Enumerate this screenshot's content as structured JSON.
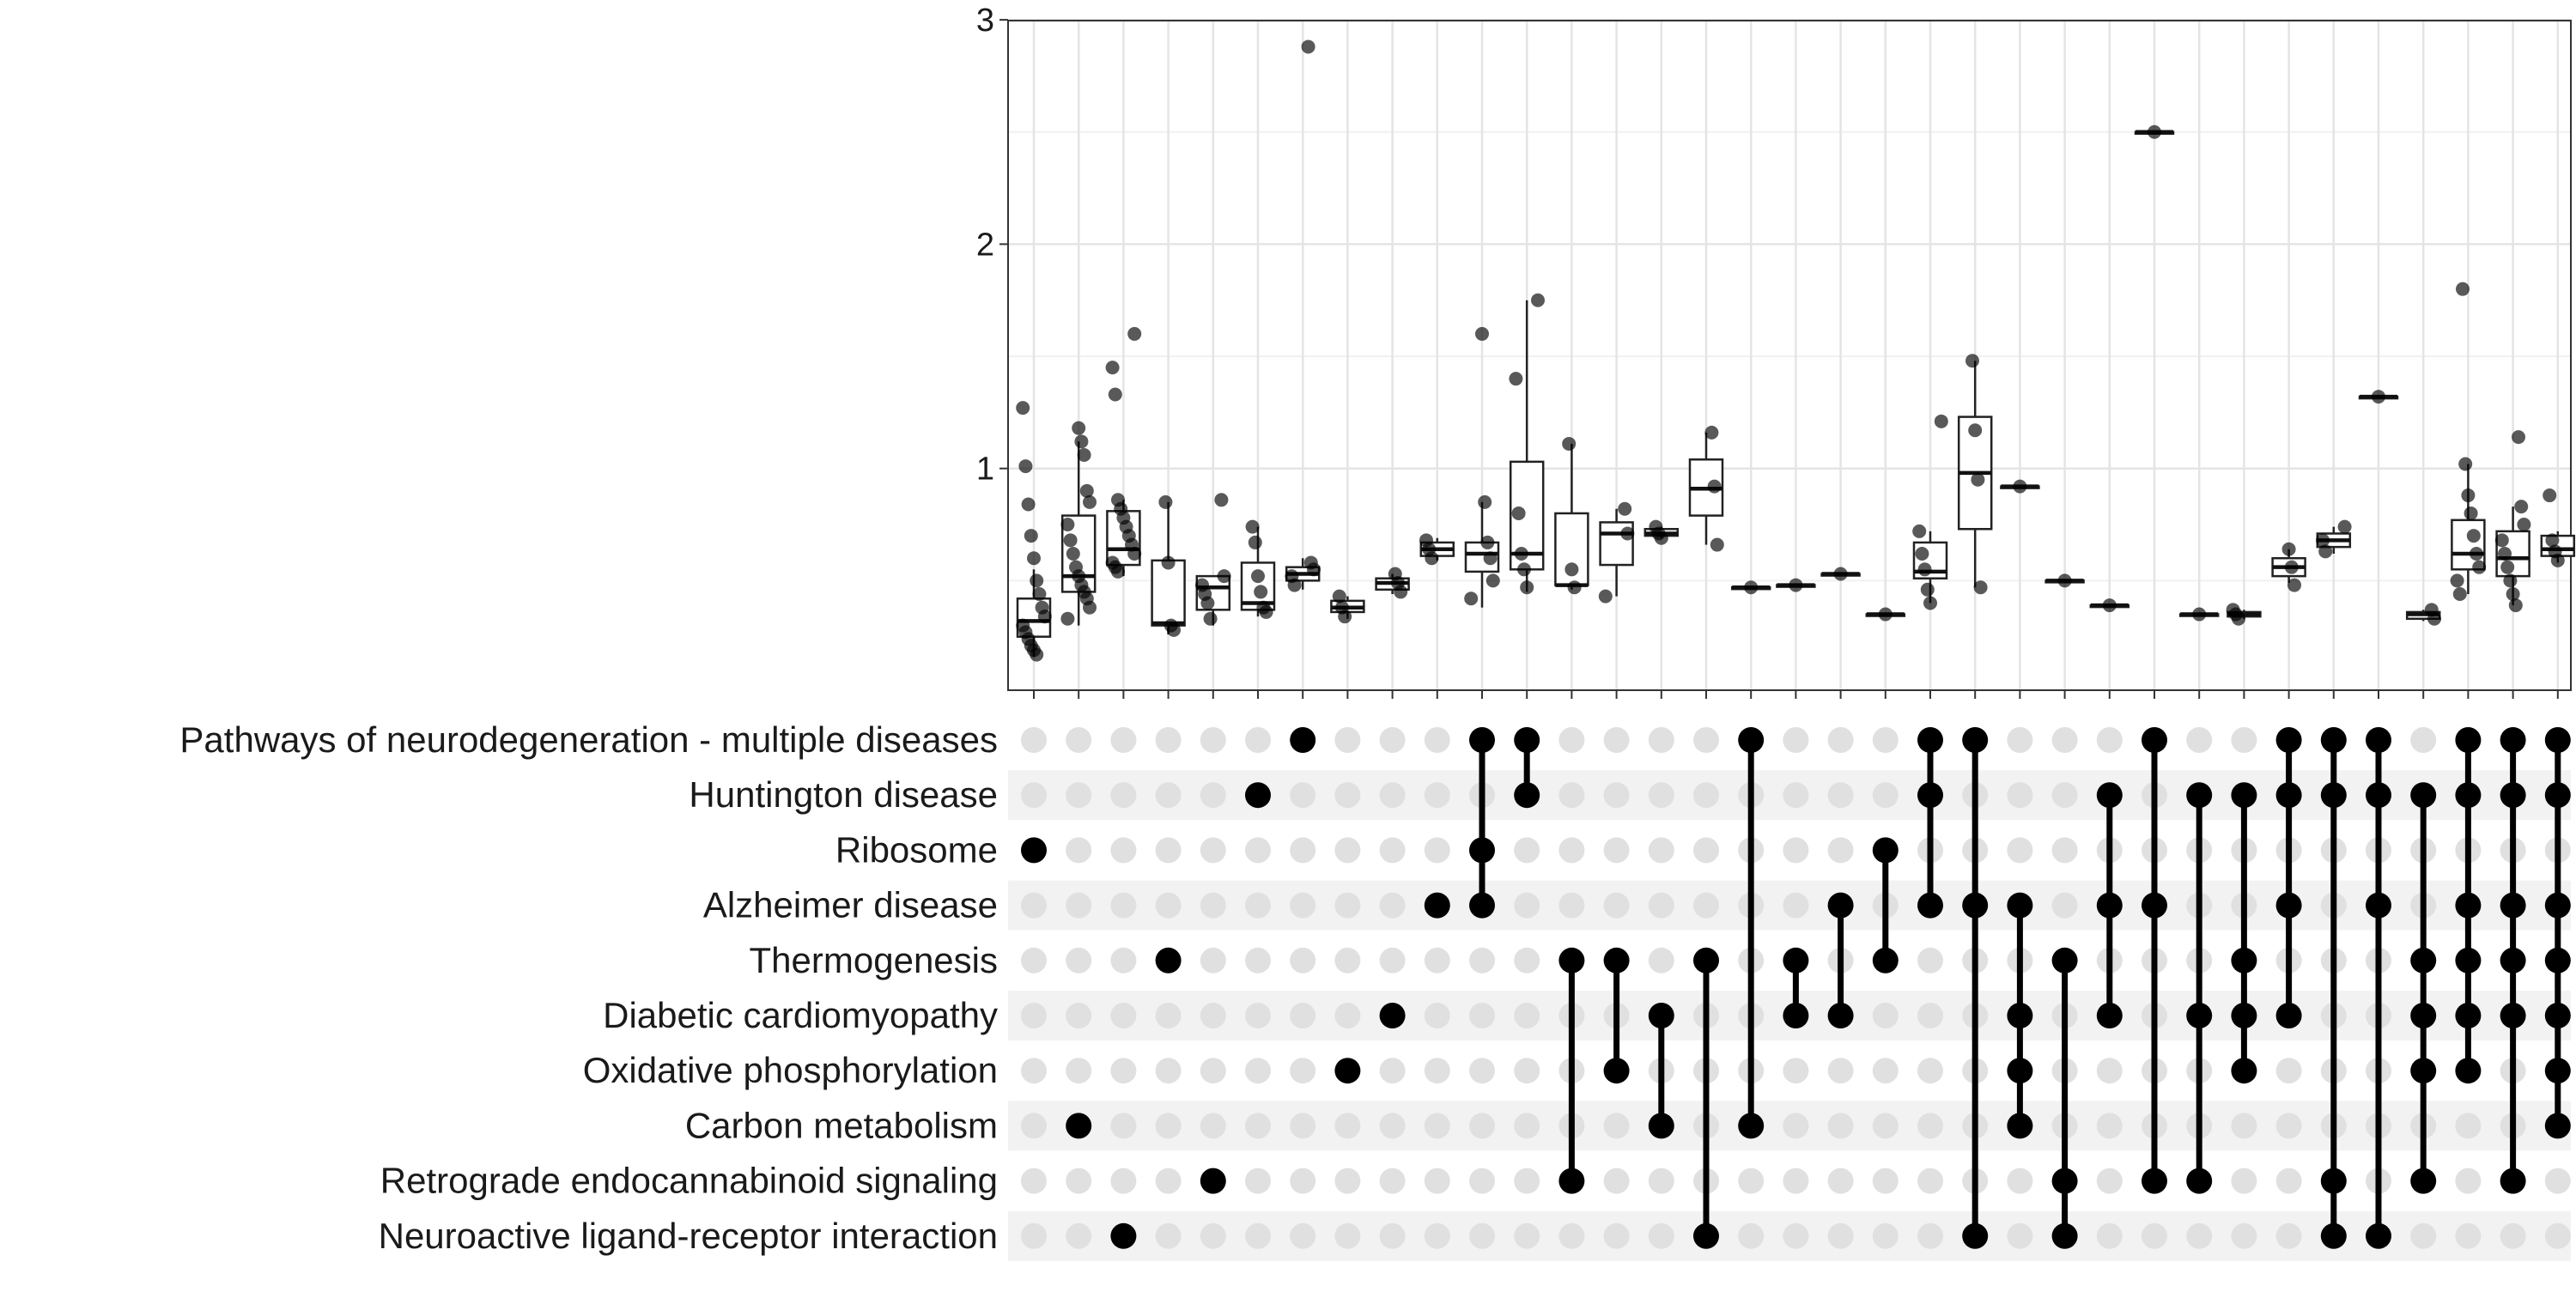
{
  "chart_data": {
    "type": "upset-boxplot",
    "title": "",
    "ylabel": "",
    "ylim": [
      0,
      3
    ],
    "yticks": [
      1,
      2,
      3
    ],
    "grid": true,
    "sets": [
      "Pathways of neurodegeneration - multiple diseases",
      "Huntington disease",
      "Ribosome",
      "Alzheimer disease",
      "Thermogenesis",
      "Diabetic cardiomyopathy",
      "Oxidative phosphorylation",
      "Carbon metabolism",
      "Retrograde endocannabinoid signaling",
      "Neuroactive ligand-receptor interaction"
    ],
    "intersections": [
      {
        "sets": [
          2
        ],
        "box": [
          0.16,
          0.25,
          0.32,
          0.42,
          0.55
        ],
        "points": [
          1.27,
          1.01,
          0.84,
          0.7,
          0.6,
          0.5,
          0.44,
          0.38,
          0.34,
          0.3,
          0.27,
          0.24,
          0.21,
          0.19,
          0.17
        ]
      },
      {
        "sets": [
          7
        ],
        "box": [
          0.3,
          0.45,
          0.52,
          0.79,
          1.12
        ],
        "points": [
          1.18,
          1.12,
          1.06,
          0.9,
          0.85,
          0.75,
          0.68,
          0.62,
          0.56,
          0.52,
          0.48,
          0.45,
          0.42,
          0.38,
          0.33
        ]
      },
      {
        "sets": [
          9
        ],
        "box": [
          0.52,
          0.57,
          0.64,
          0.81,
          0.86
        ],
        "points": [
          1.6,
          1.45,
          1.33,
          0.86,
          0.82,
          0.78,
          0.74,
          0.7,
          0.66,
          0.62,
          0.58,
          0.56,
          0.54
        ]
      },
      {
        "sets": [
          4
        ],
        "box": [
          0.26,
          0.3,
          0.31,
          0.59,
          0.85
        ],
        "points": [
          0.85,
          0.58,
          0.3,
          0.28
        ]
      },
      {
        "sets": [
          8
        ],
        "box": [
          0.3,
          0.37,
          0.47,
          0.52,
          0.52
        ],
        "points": [
          0.86,
          0.52,
          0.48,
          0.44,
          0.4,
          0.33
        ]
      },
      {
        "sets": [
          1
        ],
        "box": [
          0.34,
          0.37,
          0.4,
          0.58,
          0.74
        ],
        "points": [
          0.74,
          0.67,
          0.52,
          0.45,
          0.38,
          0.36
        ]
      },
      {
        "sets": [
          0
        ],
        "box": [
          0.46,
          0.5,
          0.53,
          0.56,
          0.6
        ],
        "points": [
          2.88,
          0.58,
          0.55,
          0.52,
          0.48
        ]
      },
      {
        "sets": [
          6
        ],
        "box": [
          0.33,
          0.36,
          0.38,
          0.41,
          0.43
        ],
        "points": [
          0.43,
          0.38,
          0.34
        ]
      },
      {
        "sets": [
          5
        ],
        "box": [
          0.44,
          0.46,
          0.49,
          0.51,
          0.53
        ],
        "points": [
          0.53,
          0.49,
          0.45
        ]
      },
      {
        "sets": [
          3
        ],
        "box": [
          0.59,
          0.61,
          0.64,
          0.67,
          0.69
        ],
        "points": [
          0.68,
          0.64,
          0.6
        ]
      },
      {
        "sets": [
          0,
          2,
          3
        ],
        "box": [
          0.38,
          0.54,
          0.62,
          0.67,
          0.85
        ],
        "points": [
          1.6,
          0.85,
          0.67,
          0.6,
          0.5,
          0.42
        ]
      },
      {
        "sets": [
          0,
          1
        ],
        "box": [
          0.45,
          0.55,
          0.62,
          1.03,
          1.75
        ],
        "points": [
          1.75,
          1.4,
          0.8,
          0.62,
          0.55,
          0.47
        ]
      },
      {
        "sets": [
          4,
          8
        ],
        "box": [
          0.46,
          0.48,
          0.48,
          0.8,
          1.11
        ],
        "points": [
          1.11,
          0.55,
          0.47
        ]
      },
      {
        "sets": [
          4,
          6
        ],
        "box": [
          0.43,
          0.57,
          0.71,
          0.76,
          0.82
        ],
        "points": [
          0.82,
          0.71,
          0.43
        ]
      },
      {
        "sets": [
          5,
          7
        ],
        "box": [
          0.69,
          0.7,
          0.71,
          0.73,
          0.74
        ],
        "points": [
          0.74,
          0.71,
          0.69
        ]
      },
      {
        "sets": [
          4,
          9
        ],
        "box": [
          0.66,
          0.79,
          0.91,
          1.04,
          1.16
        ],
        "points": [
          1.16,
          0.92,
          0.66
        ]
      },
      {
        "sets": [
          0,
          7
        ],
        "box": [
          0.47,
          0.47,
          0.47,
          0.47,
          0.47
        ],
        "points": [
          0.47
        ]
      },
      {
        "sets": [
          4,
          5
        ],
        "box": [
          0.48,
          0.48,
          0.48,
          0.48,
          0.48
        ],
        "points": [
          0.48
        ]
      },
      {
        "sets": [
          3,
          5
        ],
        "box": [
          0.53,
          0.53,
          0.53,
          0.53,
          0.53
        ],
        "points": [
          0.53
        ]
      },
      {
        "sets": [
          2,
          4
        ],
        "box": [
          0.35,
          0.35,
          0.35,
          0.35,
          0.35
        ],
        "points": [
          0.35
        ]
      },
      {
        "sets": [
          0,
          1,
          3
        ],
        "box": [
          0.4,
          0.51,
          0.54,
          0.67,
          0.72
        ],
        "points": [
          1.21,
          0.72,
          0.62,
          0.55,
          0.46,
          0.4
        ]
      },
      {
        "sets": [
          0,
          3,
          9
        ],
        "box": [
          0.47,
          0.73,
          0.98,
          1.23,
          1.48
        ],
        "points": [
          1.48,
          1.17,
          0.95,
          0.47
        ]
      },
      {
        "sets": [
          3,
          5,
          6,
          7
        ],
        "box": [
          0.92,
          0.92,
          0.92,
          0.92,
          0.92
        ],
        "points": [
          0.92
        ]
      },
      {
        "sets": [
          4,
          8,
          9
        ],
        "box": [
          0.5,
          0.5,
          0.5,
          0.5,
          0.5
        ],
        "points": [
          0.5
        ]
      },
      {
        "sets": [
          1,
          3,
          5
        ],
        "box": [
          0.39,
          0.39,
          0.39,
          0.39,
          0.39
        ],
        "points": [
          0.39
        ]
      },
      {
        "sets": [
          0,
          3,
          8
        ],
        "box": [
          2.5,
          2.5,
          2.5,
          2.5,
          2.5
        ],
        "points": [
          2.5
        ]
      },
      {
        "sets": [
          1,
          5,
          8
        ],
        "box": [
          0.35,
          0.35,
          0.35,
          0.35,
          0.35
        ],
        "points": [
          0.35
        ]
      },
      {
        "sets": [
          1,
          4,
          5,
          6
        ],
        "box": [
          0.33,
          0.34,
          0.35,
          0.36,
          0.37
        ],
        "points": [
          0.37,
          0.35,
          0.33
        ]
      },
      {
        "sets": [
          0,
          1,
          3,
          5
        ],
        "box": [
          0.49,
          0.52,
          0.56,
          0.6,
          0.64
        ],
        "points": [
          0.64,
          0.56,
          0.48
        ]
      },
      {
        "sets": [
          0,
          1,
          8,
          9
        ],
        "box": [
          0.62,
          0.65,
          0.68,
          0.71,
          0.74
        ],
        "points": [
          0.74,
          0.68,
          0.63
        ]
      },
      {
        "sets": [
          0,
          1,
          3,
          9
        ],
        "box": [
          1.32,
          1.32,
          1.32,
          1.32,
          1.32
        ],
        "points": [
          1.32
        ]
      },
      {
        "sets": [
          1,
          4,
          5,
          6,
          8
        ],
        "box": [
          0.32,
          0.33,
          0.35,
          0.36,
          0.37
        ],
        "points": [
          0.37,
          0.33
        ]
      },
      {
        "sets": [
          0,
          1,
          3,
          4,
          5,
          6
        ],
        "box": [
          0.44,
          0.55,
          0.62,
          0.77,
          1.02
        ],
        "points": [
          1.8,
          1.02,
          0.88,
          0.8,
          0.7,
          0.62,
          0.56,
          0.5,
          0.44
        ]
      },
      {
        "sets": [
          0,
          1,
          3,
          4,
          5,
          8
        ],
        "box": [
          0.39,
          0.52,
          0.6,
          0.72,
          0.83
        ],
        "points": [
          1.14,
          0.83,
          0.75,
          0.68,
          0.62,
          0.56,
          0.5,
          0.44,
          0.39
        ]
      },
      {
        "sets": [
          0,
          1,
          3,
          4,
          5,
          6,
          7
        ],
        "box": [
          0.58,
          0.61,
          0.64,
          0.7,
          0.72
        ],
        "points": [
          0.88,
          0.68,
          0.63,
          0.59
        ]
      }
    ]
  }
}
